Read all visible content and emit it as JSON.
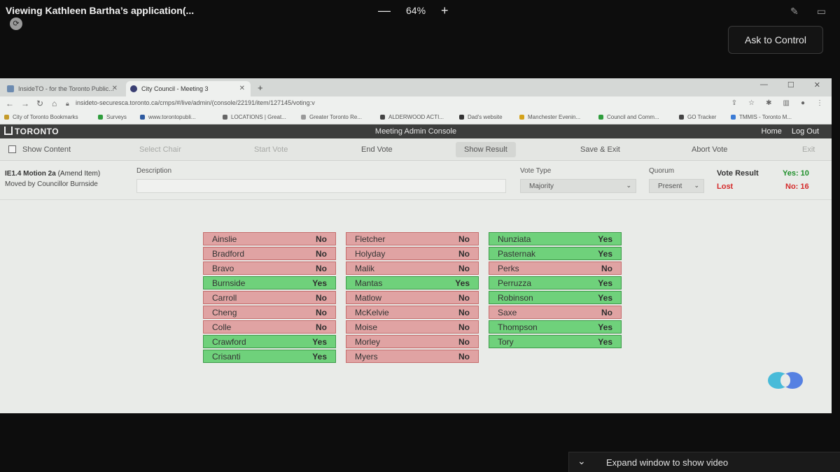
{
  "viewer": {
    "title": "Viewing Kathleen Bartha’s application(...",
    "zoom_minus": "—",
    "zoom_level": "64%",
    "zoom_plus": "+",
    "ask_control": "Ask to Control",
    "expand_video": "Expand window to show video"
  },
  "browser": {
    "tabs": [
      {
        "label": "InsideTO - for the Toronto Public..."
      },
      {
        "label": "City Council - Meeting 3"
      }
    ],
    "url": "insideto-securesca.toronto.ca/cmps/#/live/admin/(console/22191/item/127145/voting:v",
    "bookmarks": [
      "City of Toronto Bookmarks",
      "Surveys",
      "www.torontopubli...",
      "LOCATIONS | Great...",
      "Greater Toronto Re...",
      "ALDERWOOD ACTI...",
      "Dad's website",
      "Manchester Evenin...",
      "Council and Comm...",
      "GO Tracker",
      "TMMIS - Toronto M..."
    ]
  },
  "app": {
    "logo": "TORONTO",
    "title": "Meeting Admin Console",
    "home": "Home",
    "logout": "Log Out"
  },
  "toolbar": {
    "show_content": "Show Content",
    "select_chair": "Select Chair",
    "start_vote": "Start Vote",
    "end_vote": "End Vote",
    "show_result": "Show Result",
    "save_exit": "Save & Exit",
    "abort_vote": "Abort Vote",
    "exit": "Exit"
  },
  "motion": {
    "id": "IE1.4 Motion 2a",
    "type": "(Amend Item)",
    "moved_by": "Moved by Councillor Burnside",
    "description_label": "Description",
    "description_value": "",
    "vote_type_label": "Vote Type",
    "vote_type_value": "Majority",
    "quorum_label": "Quorum",
    "quorum_value": "Present",
    "vote_result_label": "Vote Result",
    "result_status": "Lost",
    "yes_count": "Yes: 10",
    "no_count": "No: 16"
  },
  "votes": {
    "col1": [
      {
        "name": "Ainslie",
        "vote": "No"
      },
      {
        "name": "Bradford",
        "vote": "No"
      },
      {
        "name": "Bravo",
        "vote": "No"
      },
      {
        "name": "Burnside",
        "vote": "Yes"
      },
      {
        "name": "Carroll",
        "vote": "No"
      },
      {
        "name": "Cheng",
        "vote": "No"
      },
      {
        "name": "Colle",
        "vote": "No"
      },
      {
        "name": "Crawford",
        "vote": "Yes"
      },
      {
        "name": "Crisanti",
        "vote": "Yes"
      }
    ],
    "col2": [
      {
        "name": "Fletcher",
        "vote": "No"
      },
      {
        "name": "Holyday",
        "vote": "No"
      },
      {
        "name": "Malik",
        "vote": "No"
      },
      {
        "name": "Mantas",
        "vote": "Yes"
      },
      {
        "name": "Matlow",
        "vote": "No"
      },
      {
        "name": "McKelvie",
        "vote": "No"
      },
      {
        "name": "Moise",
        "vote": "No"
      },
      {
        "name": "Morley",
        "vote": "No"
      },
      {
        "name": "Myers",
        "vote": "No"
      }
    ],
    "col3": [
      {
        "name": "Nunziata",
        "vote": "Yes"
      },
      {
        "name": "Pasternak",
        "vote": "Yes"
      },
      {
        "name": "Perks",
        "vote": "No"
      },
      {
        "name": "Perruzza",
        "vote": "Yes"
      },
      {
        "name": "Robinson",
        "vote": "Yes"
      },
      {
        "name": "Saxe",
        "vote": "No"
      },
      {
        "name": "Thompson",
        "vote": "Yes"
      },
      {
        "name": "Tory",
        "vote": "Yes"
      }
    ]
  }
}
